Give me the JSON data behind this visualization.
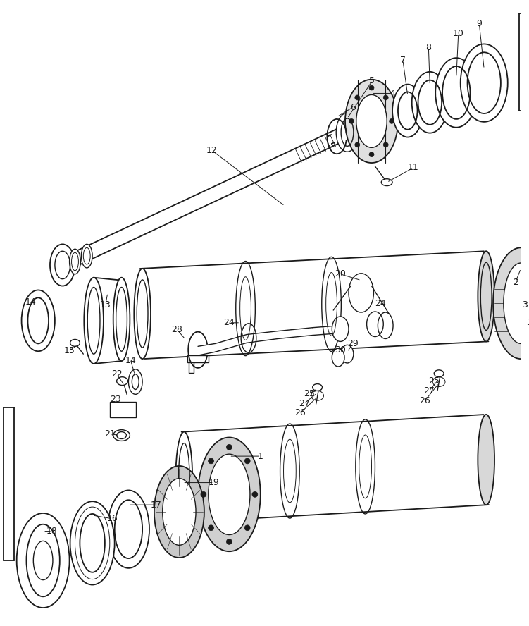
{
  "bg_color": "#ffffff",
  "line_color": "#1a1a1a",
  "fig_width": 7.51,
  "fig_height": 8.88,
  "dpi": 100
}
